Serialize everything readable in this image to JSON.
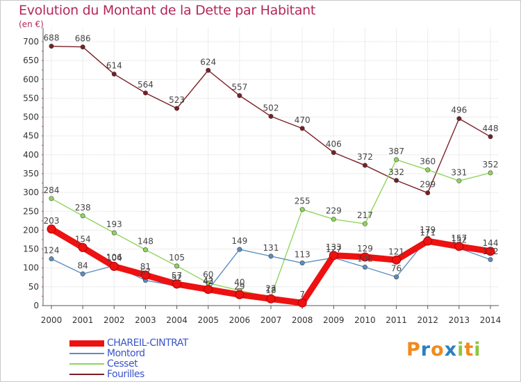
{
  "header": {
    "title": "Evolution du Montant de la Dette par Habitant",
    "unit": "(en €)"
  },
  "chart_data": {
    "type": "line",
    "title": "Evolution du Montant de la Dette par Habitant",
    "ylabel": "(en €)",
    "xlabel": "",
    "x": [
      "2000",
      "2001",
      "2002",
      "2003",
      "2004",
      "2005",
      "2006",
      "2007",
      "2008",
      "2009",
      "2010",
      "2011",
      "2012",
      "2013",
      "2014"
    ],
    "ylim": [
      0,
      700
    ],
    "yticks": [
      0,
      50,
      100,
      150,
      200,
      250,
      300,
      350,
      400,
      450,
      500,
      550,
      600,
      650,
      700
    ],
    "grid": true,
    "legend": "bottom-left",
    "series": [
      {
        "name": "Fourilles",
        "color": "#7a1e24",
        "values": [
          688,
          686,
          614,
          564,
          523,
          624,
          557,
          502,
          470,
          406,
          372,
          332,
          299,
          496,
          448
        ]
      },
      {
        "name": "Cesset",
        "color": "#90d55c",
        "values": [
          284,
          238,
          193,
          148,
          105,
          60,
          40,
          23,
          255,
          229,
          217,
          387,
          360,
          331,
          352
        ]
      },
      {
        "name": "Montord",
        "color": "#5b8ec2",
        "values": [
          124,
          84,
          106,
          67,
          52,
          42,
          149,
          131,
          113,
          127,
          102,
          76,
          179,
          152,
          122
        ]
      },
      {
        "name": "CHAREIL-CINTRAT",
        "color": "#ee1111",
        "values": [
          203,
          154,
          104,
          81,
          57,
          43,
          29,
          18,
          7,
          133,
          129,
          121,
          171,
          157,
          144
        ]
      }
    ]
  },
  "legend": [
    {
      "label": "CHAREIL-CINTRAT",
      "color": "#ee1111"
    },
    {
      "label": "Montord",
      "color": "#5b8ec2"
    },
    {
      "label": "Cesset",
      "color": "#90d55c"
    },
    {
      "label": "Fourilles",
      "color": "#7a1e24"
    }
  ],
  "logo": {
    "text": "Proxiti",
    "letters": [
      "P",
      "r",
      "o",
      "x",
      "i",
      "t",
      "i"
    ],
    "colors": [
      "#f08a1c",
      "#2a7fc2",
      "#f08a1c",
      "#2a7fc2",
      "#8cc63f",
      "#f08a1c",
      "#8cc63f"
    ]
  }
}
